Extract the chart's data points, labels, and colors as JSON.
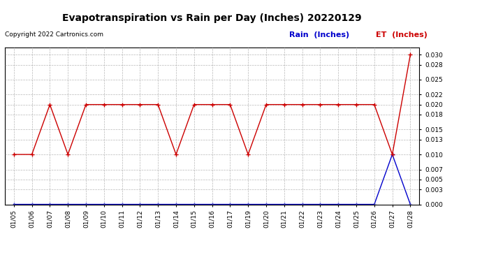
{
  "title": "Evapotranspiration vs Rain per Day (Inches) 20220129",
  "copyright": "Copyright 2022 Cartronics.com",
  "dates": [
    "01/05",
    "01/06",
    "01/07",
    "01/08",
    "01/09",
    "01/10",
    "01/11",
    "01/12",
    "01/13",
    "01/14",
    "01/15",
    "01/16",
    "01/17",
    "01/19",
    "01/20",
    "01/21",
    "01/22",
    "01/23",
    "01/24",
    "01/25",
    "01/26",
    "01/27",
    "01/28"
  ],
  "et_values": [
    0.01,
    0.01,
    0.02,
    0.01,
    0.02,
    0.02,
    0.02,
    0.02,
    0.02,
    0.01,
    0.02,
    0.02,
    0.02,
    0.01,
    0.02,
    0.02,
    0.02,
    0.02,
    0.02,
    0.02,
    0.02,
    0.01,
    0.03
  ],
  "rain_values": [
    0.0,
    0.0,
    0.0,
    0.0,
    0.0,
    0.0,
    0.0,
    0.0,
    0.0,
    0.0,
    0.0,
    0.0,
    0.0,
    0.0,
    0.0,
    0.0,
    0.0,
    0.0,
    0.0,
    0.0,
    0.0,
    0.01,
    0.0
  ],
  "et_color": "#cc0000",
  "rain_color": "#0000cc",
  "ylim": [
    0.0,
    0.0315
  ],
  "yticks": [
    0.0,
    0.003,
    0.005,
    0.007,
    0.01,
    0.013,
    0.015,
    0.018,
    0.02,
    0.022,
    0.025,
    0.028,
    0.03
  ],
  "grid_color": "#999999",
  "bg_color": "#ffffff",
  "legend_rain_label": "Rain  (Inches)",
  "legend_et_label": "ET  (Inches)",
  "title_fontsize": 10,
  "copyright_fontsize": 6.5,
  "legend_fontsize": 8,
  "tick_fontsize": 6.5
}
